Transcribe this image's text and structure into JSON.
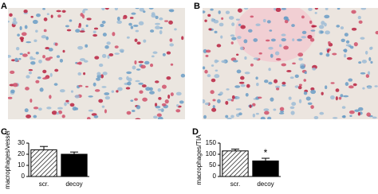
{
  "panels": [
    {
      "label": "A"
    },
    {
      "label": "B"
    }
  ],
  "chart_data": [
    {
      "type": "bar",
      "panel": "C",
      "ylabel": "macrophages/vessel",
      "categories": [
        "scr.",
        "decoy"
      ],
      "values": [
        24,
        20
      ],
      "errors": [
        3,
        2
      ],
      "fills": [
        "hatch",
        "#000000"
      ],
      "annotations": [
        null,
        null
      ],
      "ylim": [
        0,
        30
      ],
      "yticks": [
        0,
        10,
        20,
        30
      ]
    },
    {
      "type": "bar",
      "panel": "D",
      "ylabel": "macrophages/TIA",
      "categories": [
        "scr.",
        "decoy"
      ],
      "values": [
        115,
        70
      ],
      "errors": [
        8,
        12
      ],
      "fills": [
        "hatch",
        "#000000"
      ],
      "annotations": [
        null,
        "*"
      ],
      "ylim": [
        0,
        150
      ],
      "yticks": [
        0,
        50,
        100,
        150
      ]
    }
  ]
}
